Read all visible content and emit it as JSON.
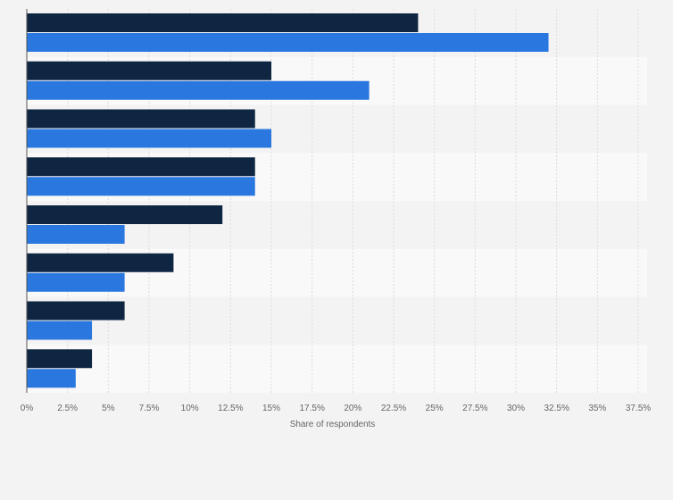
{
  "chart_data": {
    "type": "bar",
    "orientation": "horizontal",
    "categories": [
      "",
      "",
      "",
      "",
      "",
      "",
      "",
      ""
    ],
    "series": [
      {
        "values": [
          24,
          15,
          14,
          14,
          12,
          9,
          6,
          4
        ]
      },
      {
        "values": [
          32,
          21,
          15,
          14,
          6,
          6,
          4,
          3
        ]
      }
    ],
    "colors": [
      "#0f2642",
      "#2a78df"
    ],
    "xlabel": "Share of respondents",
    "xlim": [
      0,
      37.5
    ],
    "xticks": [
      "0%",
      "2.5%",
      "5%",
      "7.5%",
      "10%",
      "12.5%",
      "15%",
      "17.5%",
      "20%",
      "22.5%",
      "25%",
      "27.5%",
      "30%",
      "32.5%",
      "35%",
      "37.5%"
    ],
    "grid": true,
    "legend": "none"
  }
}
